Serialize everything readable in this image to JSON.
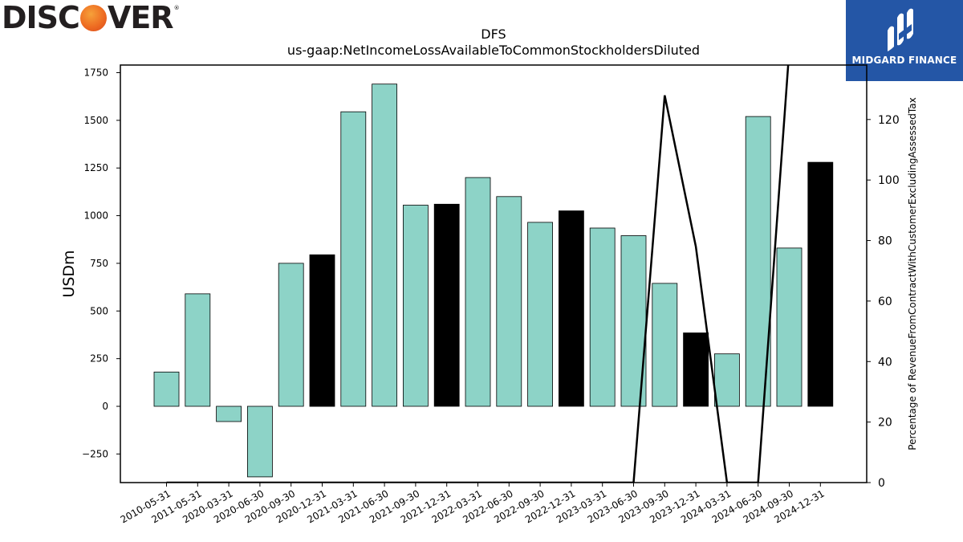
{
  "branding": {
    "left_logo_text": "DISCOVER",
    "left_logo_mark": "®",
    "right_logo_text": "MIDGARD FINANCE"
  },
  "chart_data": {
    "type": "bar",
    "title": "DFS",
    "subtitle": "us-gaap:NetIncomeLossAvailableToCommonStockholdersDiluted",
    "ylabel": "USDm",
    "y2label": "Percentage of RevenueFromContractWithCustomerExcludingAssessedTax",
    "ylim": [
      -400,
      1790
    ],
    "y2lim": [
      0,
      138
    ],
    "yticks": [
      -250,
      0,
      250,
      500,
      750,
      1000,
      1250,
      1500,
      1750
    ],
    "y2ticks": [
      0,
      20,
      40,
      60,
      80,
      100,
      120
    ],
    "categories": [
      "2010-05-31",
      "2011-05-31",
      "2020-03-31",
      "2020-06-30",
      "2020-09-30",
      "2020-12-31",
      "2021-03-31",
      "2021-06-30",
      "2021-09-30",
      "2021-12-31",
      "2022-03-31",
      "2022-06-30",
      "2022-09-30",
      "2022-12-31",
      "2023-03-31",
      "2023-06-30",
      "2023-09-30",
      "2023-12-31",
      "2024-03-31",
      "2024-06-30",
      "2024-09-30",
      "2024-12-31"
    ],
    "series": [
      {
        "type": "bar",
        "axis": "left",
        "values": [
          180,
          590,
          -80,
          -370,
          750,
          795,
          1545,
          1690,
          1055,
          1060,
          1200,
          1100,
          965,
          1025,
          935,
          895,
          645,
          385,
          275,
          1520,
          830,
          1280
        ],
        "highlight": [
          false,
          false,
          false,
          false,
          false,
          true,
          false,
          false,
          false,
          true,
          false,
          false,
          false,
          true,
          false,
          false,
          false,
          true,
          false,
          false,
          false,
          true
        ]
      },
      {
        "type": "line",
        "axis": "right",
        "values": [
          0,
          0,
          0,
          0,
          0,
          0,
          0,
          0,
          0,
          0,
          0,
          0,
          0,
          0,
          0,
          0,
          128,
          78,
          0,
          0,
          143,
          140
        ]
      }
    ],
    "colors": {
      "bar": "#8dd3c7",
      "highlight": "#000000",
      "line": "#000000"
    },
    "grid": false,
    "legend": "none"
  }
}
